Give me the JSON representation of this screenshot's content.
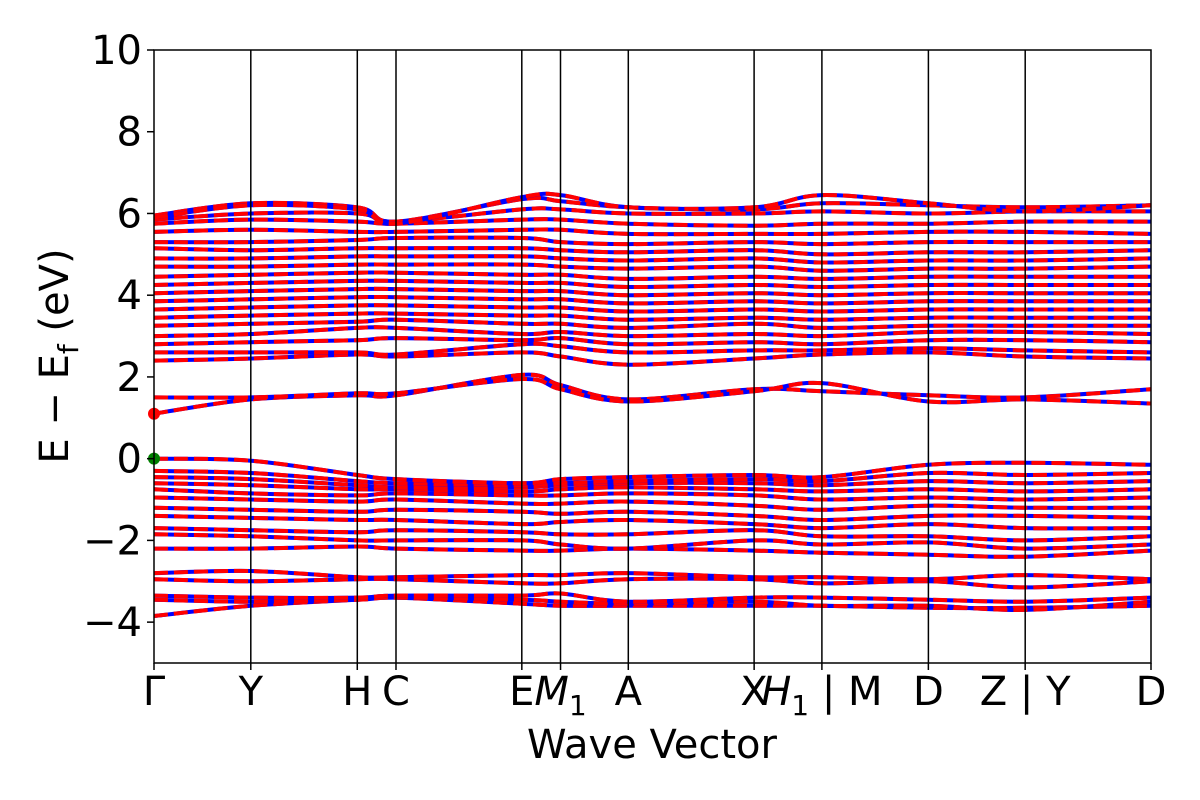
{
  "chart_data": {
    "type": "line",
    "title": "",
    "xlabel": "Wave Vector",
    "ylabel": "E − E_f (eV)",
    "ylabel_parts": {
      "main": "E − E",
      "sub": "f",
      "unit": " (eV)"
    },
    "ylim": [
      -5,
      10
    ],
    "yticks": [
      -4,
      -2,
      0,
      2,
      4,
      6,
      8,
      10
    ],
    "ytick_labels": [
      "−4",
      "−2",
      "0",
      "2",
      "4",
      "6",
      "8",
      "10"
    ],
    "xticks": [
      0,
      1.0,
      2.1,
      2.5,
      3.8,
      4.2,
      4.9,
      6.2,
      6.9,
      8.0,
      9.0,
      10.3
    ],
    "xtick_labels": [
      "Γ",
      "Y",
      "H",
      "C",
      "E",
      "M1",
      "A",
      "X",
      "H1|M",
      "D",
      "Z|Y",
      "D"
    ],
    "xtick_label_parts": [
      {
        "main": "Γ"
      },
      {
        "main": "Y"
      },
      {
        "main": "H"
      },
      {
        "main": "C"
      },
      {
        "main": "E"
      },
      {
        "main": "M",
        "sub": "1",
        "italic": true
      },
      {
        "main": "A"
      },
      {
        "main": "X"
      },
      {
        "main": "H",
        "sub": "1",
        "italic": true,
        "suffix": " | M"
      },
      {
        "main": "D"
      },
      {
        "main": "Z | Y"
      },
      {
        "main": "D"
      }
    ],
    "xlim": [
      0,
      10.3
    ],
    "grid": false,
    "vertical_lines_at_ticks": true,
    "series_colors": {
      "spin_up": "#ff0000",
      "spin_down": "#0000ff"
    },
    "markers": [
      {
        "name": "cbm",
        "x": 0,
        "y": 1.1,
        "color": "#ff0000"
      },
      {
        "name": "vbm",
        "x": 0,
        "y": 0.0,
        "color": "#008000"
      }
    ],
    "bands": [
      {
        "group": "valence",
        "y": [
          -3.85,
          -3.6,
          -3.45,
          -3.4,
          -3.55,
          -3.6,
          -3.6,
          -3.6,
          -3.6,
          -3.65,
          -3.65,
          -3.6
        ]
      },
      {
        "group": "valence",
        "y": [
          -3.45,
          -3.5,
          -3.45,
          -3.4,
          -3.45,
          -3.5,
          -3.55,
          -3.5,
          -3.6,
          -3.6,
          -3.7,
          -3.5
        ]
      },
      {
        "group": "valence",
        "y": [
          -3.35,
          -3.4,
          -3.4,
          -3.35,
          -3.35,
          -3.3,
          -3.5,
          -3.4,
          -3.4,
          -3.45,
          -3.5,
          -3.4
        ]
      },
      {
        "group": "valence",
        "y": [
          -2.95,
          -3.0,
          -2.95,
          -2.95,
          -3.05,
          -3.05,
          -2.95,
          -2.95,
          -3.05,
          -3.0,
          -3.15,
          -3.0
        ]
      },
      {
        "group": "valence",
        "y": [
          -2.8,
          -2.75,
          -2.9,
          -2.9,
          -2.85,
          -2.85,
          -2.8,
          -2.9,
          -2.9,
          -2.95,
          -2.85,
          -2.95
        ]
      },
      {
        "group": "valence",
        "y": [
          -2.2,
          -2.2,
          -2.15,
          -2.2,
          -2.25,
          -2.25,
          -2.2,
          -2.25,
          -2.3,
          -2.35,
          -2.4,
          -2.25
        ]
      },
      {
        "group": "valence",
        "y": [
          -1.85,
          -1.9,
          -2.0,
          -2.0,
          -2.0,
          -2.1,
          -2.2,
          -2.0,
          -2.1,
          -2.05,
          -2.2,
          -2.1
        ]
      },
      {
        "group": "valence",
        "y": [
          -1.7,
          -1.75,
          -1.8,
          -1.75,
          -1.8,
          -1.85,
          -1.85,
          -1.75,
          -1.9,
          -1.9,
          -2.0,
          -1.9
        ]
      },
      {
        "group": "valence",
        "y": [
          -1.4,
          -1.45,
          -1.5,
          -1.5,
          -1.6,
          -1.55,
          -1.5,
          -1.6,
          -1.7,
          -1.6,
          -1.7,
          -1.7
        ]
      },
      {
        "group": "valence",
        "y": [
          -1.2,
          -1.25,
          -1.3,
          -1.25,
          -1.3,
          -1.35,
          -1.3,
          -1.4,
          -1.5,
          -1.4,
          -1.4,
          -1.45
        ]
      },
      {
        "group": "valence",
        "y": [
          -0.95,
          -1.0,
          -1.05,
          -1.0,
          -1.1,
          -1.1,
          -1.05,
          -1.15,
          -1.25,
          -1.15,
          -1.2,
          -1.2
        ]
      },
      {
        "group": "valence",
        "y": [
          -0.75,
          -0.85,
          -0.9,
          -0.85,
          -0.9,
          -0.9,
          -0.85,
          -0.9,
          -1.0,
          -0.95,
          -1.0,
          -0.95
        ]
      },
      {
        "group": "valence",
        "y": [
          -0.6,
          -0.65,
          -0.75,
          -0.75,
          -0.8,
          -0.75,
          -0.7,
          -0.75,
          -0.8,
          -0.75,
          -0.8,
          -0.75
        ]
      },
      {
        "group": "valence",
        "y": [
          -0.45,
          -0.5,
          -0.65,
          -0.7,
          -0.7,
          -0.65,
          -0.6,
          -0.6,
          -0.65,
          -0.55,
          -0.6,
          -0.55
        ]
      },
      {
        "group": "valence",
        "y": [
          -0.3,
          -0.35,
          -0.55,
          -0.6,
          -0.65,
          -0.6,
          -0.55,
          -0.5,
          -0.55,
          -0.35,
          -0.4,
          -0.35
        ]
      },
      {
        "group": "valence",
        "y": [
          0.0,
          -0.05,
          -0.4,
          -0.5,
          -0.6,
          -0.5,
          -0.45,
          -0.4,
          -0.45,
          -0.15,
          -0.1,
          -0.15
        ]
      },
      {
        "group": "conduction",
        "y": [
          1.1,
          1.45,
          1.55,
          1.55,
          2.05,
          1.8,
          1.45,
          1.7,
          1.65,
          1.55,
          1.5,
          1.7
        ]
      },
      {
        "group": "conduction",
        "y": [
          1.5,
          1.5,
          1.6,
          1.6,
          1.95,
          1.7,
          1.4,
          1.65,
          1.85,
          1.4,
          1.45,
          1.35
        ]
      },
      {
        "group": "conduction",
        "y": [
          2.4,
          2.45,
          2.55,
          2.5,
          2.6,
          2.5,
          2.3,
          2.45,
          2.55,
          2.6,
          2.5,
          2.45
        ]
      },
      {
        "group": "conduction",
        "y": [
          2.6,
          2.6,
          2.6,
          2.55,
          2.8,
          2.75,
          2.6,
          2.65,
          2.65,
          2.7,
          2.65,
          2.6
        ]
      },
      {
        "group": "conduction",
        "y": [
          2.8,
          2.85,
          2.9,
          2.95,
          2.9,
          2.95,
          2.8,
          2.85,
          2.8,
          2.9,
          2.9,
          2.85
        ]
      },
      {
        "group": "conduction",
        "y": [
          3.0,
          3.05,
          3.2,
          3.2,
          3.05,
          3.1,
          3.0,
          3.05,
          3.0,
          3.1,
          3.1,
          3.05
        ]
      },
      {
        "group": "conduction",
        "y": [
          3.25,
          3.3,
          3.35,
          3.4,
          3.3,
          3.3,
          3.2,
          3.3,
          3.2,
          3.25,
          3.25,
          3.25
        ]
      },
      {
        "group": "conduction",
        "y": [
          3.45,
          3.5,
          3.55,
          3.55,
          3.5,
          3.5,
          3.4,
          3.45,
          3.4,
          3.45,
          3.45,
          3.45
        ]
      },
      {
        "group": "conduction",
        "y": [
          3.65,
          3.7,
          3.75,
          3.75,
          3.7,
          3.7,
          3.6,
          3.65,
          3.6,
          3.65,
          3.65,
          3.65
        ]
      },
      {
        "group": "conduction",
        "y": [
          3.85,
          3.9,
          3.95,
          3.95,
          3.9,
          3.9,
          3.8,
          3.85,
          3.8,
          3.85,
          3.85,
          3.85
        ]
      },
      {
        "group": "conduction",
        "y": [
          4.05,
          4.1,
          4.15,
          4.15,
          4.1,
          4.1,
          4.0,
          4.05,
          4.0,
          4.05,
          4.05,
          4.05
        ]
      },
      {
        "group": "conduction",
        "y": [
          4.25,
          4.3,
          4.35,
          4.35,
          4.3,
          4.3,
          4.2,
          4.25,
          4.2,
          4.25,
          4.25,
          4.25
        ]
      },
      {
        "group": "conduction",
        "y": [
          4.45,
          4.5,
          4.55,
          4.55,
          4.5,
          4.5,
          4.4,
          4.45,
          4.4,
          4.45,
          4.45,
          4.45
        ]
      },
      {
        "group": "conduction",
        "y": [
          4.7,
          4.7,
          4.75,
          4.75,
          4.75,
          4.7,
          4.65,
          4.7,
          4.6,
          4.65,
          4.65,
          4.7
        ]
      },
      {
        "group": "conduction",
        "y": [
          4.9,
          4.9,
          4.95,
          4.95,
          4.95,
          4.9,
          4.85,
          4.9,
          4.8,
          4.85,
          4.85,
          4.9
        ]
      },
      {
        "group": "conduction",
        "y": [
          5.15,
          5.1,
          5.15,
          5.15,
          5.15,
          5.1,
          5.05,
          5.1,
          5.0,
          5.05,
          5.05,
          5.1
        ]
      },
      {
        "group": "conduction",
        "y": [
          5.3,
          5.3,
          5.35,
          5.4,
          5.4,
          5.3,
          5.25,
          5.3,
          5.25,
          5.3,
          5.3,
          5.3
        ]
      },
      {
        "group": "conduction",
        "y": [
          5.55,
          5.6,
          5.55,
          5.55,
          5.6,
          5.6,
          5.5,
          5.5,
          5.5,
          5.55,
          5.55,
          5.5
        ]
      },
      {
        "group": "conduction",
        "y": [
          5.75,
          5.85,
          5.8,
          5.75,
          5.85,
          5.85,
          5.75,
          5.7,
          5.75,
          5.75,
          5.8,
          5.8
        ]
      },
      {
        "group": "conduction",
        "y": [
          5.85,
          6.0,
          6.0,
          5.8,
          6.1,
          6.1,
          6.0,
          6.0,
          6.05,
          6.0,
          6.05,
          6.05
        ]
      },
      {
        "group": "conduction",
        "y": [
          5.95,
          6.25,
          6.15,
          5.8,
          6.35,
          6.3,
          6.15,
          6.1,
          6.25,
          6.2,
          6.15,
          6.2
        ]
      },
      {
        "group": "conduction",
        "y": [
          5.9,
          6.2,
          6.1,
          5.75,
          6.4,
          6.45,
          6.15,
          6.15,
          6.45,
          6.25,
          6.05,
          6.2
        ]
      }
    ]
  }
}
